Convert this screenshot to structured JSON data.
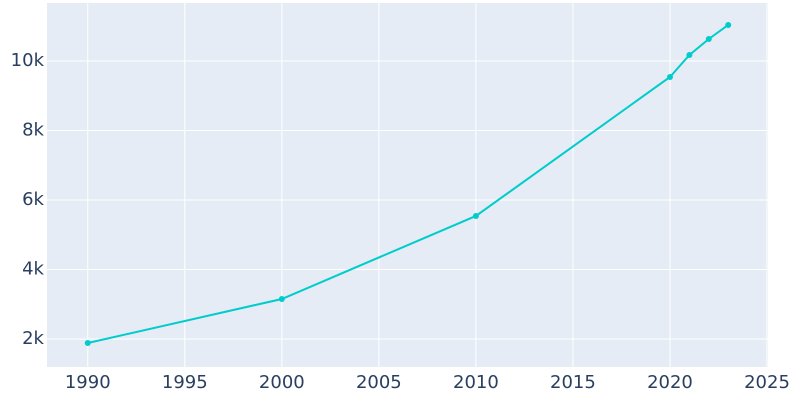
{
  "chart_data": {
    "type": "line",
    "x": [
      1990,
      2000,
      2010,
      2020,
      2021,
      2022,
      2023
    ],
    "series": [
      {
        "color": "#00cccc",
        "values": [
          1885,
          3151,
          5540,
          9540,
          10173,
          10633,
          11036
        ]
      }
    ],
    "xlim": [
      1987.9,
      2025.05
    ],
    "ylim": [
      1194,
      11669
    ],
    "xticks": [
      1990,
      1995,
      2000,
      2005,
      2010,
      2015,
      2020,
      2025
    ],
    "yticks": [
      {
        "value": 2000,
        "label": "2k"
      },
      {
        "value": 4000,
        "label": "4k"
      },
      {
        "value": 6000,
        "label": "6k"
      },
      {
        "value": 8000,
        "label": "8k"
      },
      {
        "value": 10000,
        "label": "10k"
      }
    ],
    "grid": true
  }
}
